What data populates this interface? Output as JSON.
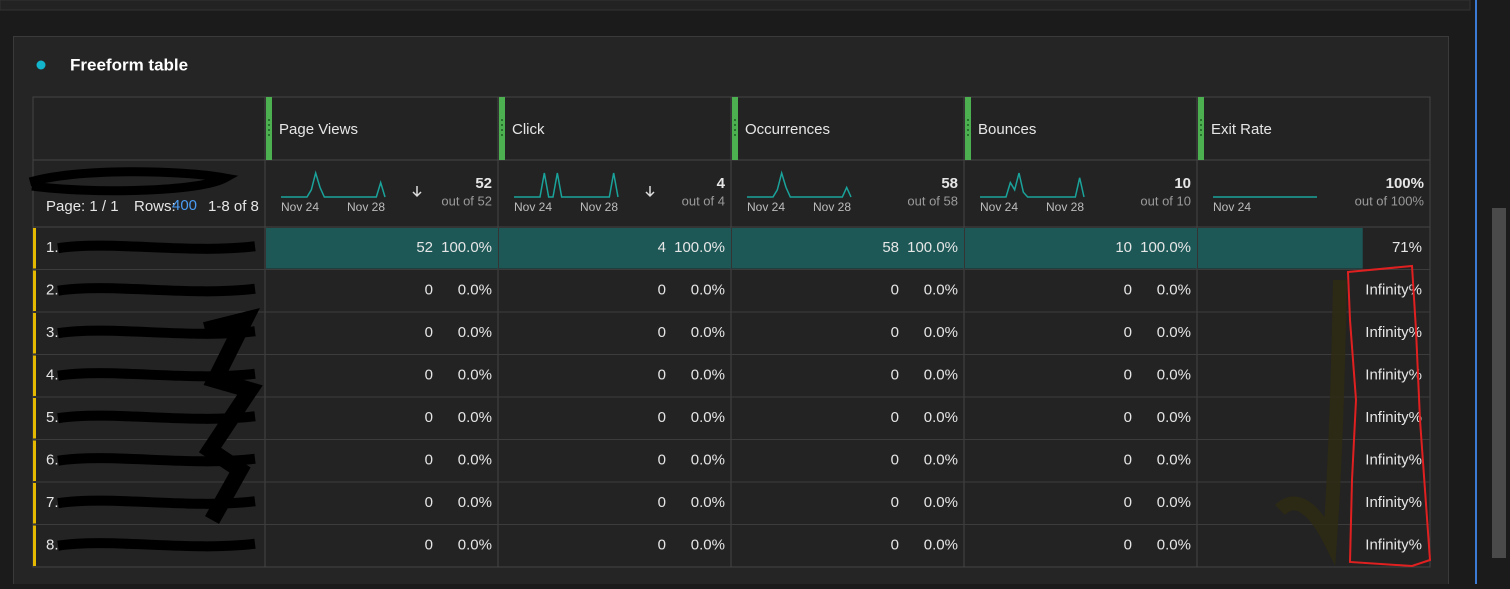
{
  "panel": {
    "title": "Freeform table"
  },
  "table": {
    "pagination": {
      "page": "Page: 1 / 1",
      "rows_label": "Rows:",
      "rows": "400",
      "range": "1-8 of 8"
    },
    "columns": [
      {
        "name": "Page Views",
        "total": "52",
        "out_of": "out of 52",
        "dates": [
          "Nov 24",
          "Nov 28"
        ],
        "sorted": true,
        "trend": [
          0,
          0,
          0,
          0,
          0,
          0,
          0,
          3,
          10,
          4,
          0,
          0,
          0,
          0,
          0,
          0,
          0,
          0,
          0,
          0,
          0,
          0,
          0,
          6,
          0
        ]
      },
      {
        "name": "Click",
        "total": "4",
        "out_of": "out of 4",
        "dates": [
          "Nov 24",
          "Nov 28"
        ],
        "sorted": true,
        "trend": [
          0,
          0,
          0,
          0,
          0,
          0,
          0,
          1,
          0,
          0,
          1,
          0,
          0,
          0,
          0,
          0,
          0,
          0,
          0,
          0,
          0,
          0,
          0,
          1,
          0
        ]
      },
      {
        "name": "Occurrences",
        "total": "58",
        "out_of": "out of 58",
        "dates": [
          "Nov 24",
          "Nov 28"
        ],
        "sorted": false,
        "trend": [
          0,
          0,
          0,
          0,
          0,
          0,
          0,
          3,
          10,
          4,
          0,
          0,
          0,
          0,
          0,
          0,
          0,
          0,
          0,
          0,
          0,
          0,
          0,
          4,
          0
        ]
      },
      {
        "name": "Bounces",
        "total": "10",
        "out_of": "out of 10",
        "dates": [
          "Nov 24",
          "Nov 28"
        ],
        "sorted": false,
        "trend": [
          0,
          0,
          0,
          0,
          0,
          0,
          0,
          6,
          3,
          10,
          2,
          0,
          0,
          0,
          0,
          0,
          0,
          0,
          0,
          0,
          0,
          0,
          0,
          8,
          0
        ]
      },
      {
        "name": "Exit Rate",
        "total": "100%",
        "out_of": "out of 100%",
        "dates": [
          "Nov 24"
        ],
        "sorted": false,
        "trend": [
          0,
          0,
          0,
          0,
          0,
          0,
          0,
          0,
          0,
          0,
          0,
          0,
          0,
          0,
          0,
          0,
          0,
          0,
          0,
          0,
          0,
          0,
          0,
          0,
          0
        ]
      }
    ],
    "rows": [
      {
        "index": "1.",
        "cells": [
          [
            "52",
            "100.0%"
          ],
          [
            "4",
            "100.0%"
          ],
          [
            "58",
            "100.0%"
          ],
          [
            "10",
            "100.0%"
          ]
        ],
        "exit_rate": "71%"
      },
      {
        "index": "2.",
        "cells": [
          [
            "0",
            "0.0%"
          ],
          [
            "0",
            "0.0%"
          ],
          [
            "0",
            "0.0%"
          ],
          [
            "0",
            "0.0%"
          ]
        ],
        "exit_rate": "Infinity%"
      },
      {
        "index": "3.",
        "cells": [
          [
            "0",
            "0.0%"
          ],
          [
            "0",
            "0.0%"
          ],
          [
            "0",
            "0.0%"
          ],
          [
            "0",
            "0.0%"
          ]
        ],
        "exit_rate": "Infinity%"
      },
      {
        "index": "4.",
        "cells": [
          [
            "0",
            "0.0%"
          ],
          [
            "0",
            "0.0%"
          ],
          [
            "0",
            "0.0%"
          ],
          [
            "0",
            "0.0%"
          ]
        ],
        "exit_rate": "Infinity%"
      },
      {
        "index": "5.",
        "cells": [
          [
            "0",
            "0.0%"
          ],
          [
            "0",
            "0.0%"
          ],
          [
            "0",
            "0.0%"
          ],
          [
            "0",
            "0.0%"
          ]
        ],
        "exit_rate": "Infinity%"
      },
      {
        "index": "6.",
        "cells": [
          [
            "0",
            "0.0%"
          ],
          [
            "0",
            "0.0%"
          ],
          [
            "0",
            "0.0%"
          ],
          [
            "0",
            "0.0%"
          ]
        ],
        "exit_rate": "Infinity%"
      },
      {
        "index": "7.",
        "cells": [
          [
            "0",
            "0.0%"
          ],
          [
            "0",
            "0.0%"
          ],
          [
            "0",
            "0.0%"
          ],
          [
            "0",
            "0.0%"
          ]
        ],
        "exit_rate": "Infinity%"
      },
      {
        "index": "8.",
        "cells": [
          [
            "0",
            "0.0%"
          ],
          [
            "0",
            "0.0%"
          ],
          [
            "0",
            "0.0%"
          ],
          [
            "0",
            "0.0%"
          ]
        ],
        "exit_rate": "Infinity%"
      }
    ]
  }
}
